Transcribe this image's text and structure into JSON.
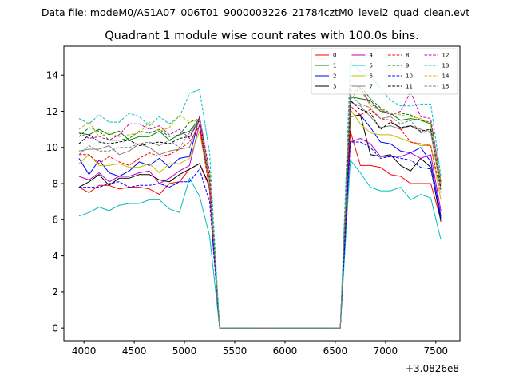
{
  "chart_data": {
    "type": "line",
    "suptitle": "Data file: modeM0/AS1A07_006T01_9000003226_21784cztM0_level2_quad_clean.evt",
    "title": "Quadrant 1 module wise count rates with 100.0s bins.",
    "xlabel": "",
    "ylabel": "",
    "offset_label": "+3.0826e8",
    "xlim": [
      3800,
      7740
    ],
    "ylim": [
      -0.7,
      15.6
    ],
    "xticks": [
      4000,
      4500,
      5000,
      5500,
      6000,
      6500,
      7000,
      7500
    ],
    "yticks": [
      0,
      2,
      4,
      6,
      8,
      10,
      12,
      14
    ],
    "legend_position": "top-right",
    "x": [
      3950,
      4050,
      4150,
      4250,
      4350,
      4450,
      4550,
      4650,
      4750,
      4850,
      4950,
      5050,
      5150,
      5250,
      5350,
      5450,
      5550,
      5650,
      5750,
      5850,
      5950,
      6050,
      6150,
      6250,
      6350,
      6450,
      6550,
      6650,
      6750,
      6850,
      6950,
      7050,
      7150,
      7250,
      7350,
      7450,
      7550
    ],
    "series": [
      {
        "name": "0",
        "color": "#ff0000",
        "dash": "solid",
        "values": [
          7.8,
          7.5,
          7.9,
          7.9,
          7.7,
          7.8,
          7.8,
          7.7,
          7.4,
          8.0,
          8.1,
          8.8,
          9.1,
          7.8,
          0,
          0,
          0,
          0,
          0,
          0,
          0,
          0,
          0,
          0,
          0,
          0,
          0,
          10.9,
          9.0,
          9.0,
          8.9,
          8.5,
          8.4,
          8.0,
          8.0,
          8.0,
          6.0
        ]
      },
      {
        "name": "1",
        "color": "#008000",
        "dash": "solid",
        "values": [
          10.8,
          10.7,
          11.0,
          10.7,
          10.9,
          10.4,
          10.6,
          10.6,
          10.9,
          10.4,
          10.7,
          10.9,
          11.6,
          8.4,
          0,
          0,
          0,
          0,
          0,
          0,
          0,
          0,
          0,
          0,
          0,
          0,
          0,
          12.8,
          12.7,
          12.6,
          12.0,
          11.9,
          11.5,
          11.6,
          11.5,
          11.3,
          8.1
        ]
      },
      {
        "name": "2",
        "color": "#0000ff",
        "dash": "solid",
        "values": [
          9.4,
          8.5,
          9.3,
          8.6,
          8.4,
          8.7,
          9.2,
          9.0,
          9.4,
          8.9,
          9.4,
          9.5,
          11.7,
          7.6,
          0,
          0,
          0,
          0,
          0,
          0,
          0,
          0,
          0,
          0,
          0,
          0,
          0,
          11.7,
          11.8,
          11.1,
          10.3,
          10.2,
          9.8,
          9.7,
          10.0,
          9.2,
          6.2
        ]
      },
      {
        "name": "3",
        "color": "#000000",
        "dash": "solid",
        "values": [
          7.8,
          8.1,
          8.5,
          7.9,
          8.3,
          8.3,
          8.5,
          8.5,
          8.2,
          8.1,
          8.5,
          8.8,
          9.1,
          7.9,
          0,
          0,
          0,
          0,
          0,
          0,
          0,
          0,
          0,
          0,
          0,
          0,
          0,
          11.7,
          11.8,
          9.6,
          9.5,
          9.6,
          9.0,
          8.7,
          9.4,
          8.9,
          5.9
        ]
      },
      {
        "name": "4",
        "color": "#bf00bf",
        "dash": "solid",
        "values": [
          8.4,
          8.2,
          8.6,
          8.1,
          8.4,
          8.4,
          8.6,
          8.7,
          8.0,
          8.3,
          8.7,
          9.0,
          11.3,
          7.7,
          0,
          0,
          0,
          0,
          0,
          0,
          0,
          0,
          0,
          0,
          0,
          0,
          0,
          10.3,
          10.5,
          10.2,
          9.5,
          9.5,
          9.5,
          9.7,
          9.4,
          9.6,
          6.5
        ]
      },
      {
        "name": "5",
        "color": "#00bfbf",
        "dash": "solid",
        "values": [
          6.2,
          6.4,
          6.7,
          6.5,
          6.8,
          6.9,
          6.9,
          7.1,
          7.1,
          6.6,
          6.4,
          8.3,
          7.3,
          5.1,
          0,
          0,
          0,
          0,
          0,
          0,
          0,
          0,
          0,
          0,
          0,
          0,
          0,
          9.3,
          8.6,
          7.8,
          7.6,
          7.6,
          7.8,
          7.1,
          7.4,
          7.2,
          4.9
        ]
      },
      {
        "name": "6",
        "color": "#bfbf00",
        "dash": "solid",
        "values": [
          9.1,
          9.6,
          9.0,
          9.0,
          9.1,
          8.9,
          8.9,
          9.1,
          8.6,
          9.1,
          9.1,
          9.4,
          10.9,
          7.8,
          0,
          0,
          0,
          0,
          0,
          0,
          0,
          0,
          0,
          0,
          0,
          0,
          0,
          12.1,
          11.3,
          10.8,
          10.7,
          10.7,
          10.5,
          10.3,
          10.1,
          10.1,
          7.1
        ]
      },
      {
        "name": "7",
        "color": "#808080",
        "dash": "solid",
        "values": [
          9.8,
          9.9,
          9.9,
          10.1,
          9.6,
          9.8,
          10.2,
          10.0,
          9.6,
          9.8,
          9.9,
          10.0,
          11.6,
          8.3,
          0,
          0,
          0,
          0,
          0,
          0,
          0,
          0,
          0,
          0,
          0,
          0,
          0,
          12.5,
          12.3,
          11.7,
          11.1,
          11.2,
          11.0,
          11.2,
          11.0,
          10.8,
          7.7
        ]
      },
      {
        "name": "8",
        "color": "#ff0000",
        "dash": "dashed",
        "values": [
          9.6,
          9.6,
          9.1,
          9.5,
          9.2,
          9.0,
          9.4,
          9.7,
          9.5,
          9.6,
          9.9,
          10.3,
          11.2,
          7.6,
          0,
          0,
          0,
          0,
          0,
          0,
          0,
          0,
          0,
          0,
          0,
          0,
          0,
          12.3,
          11.8,
          12.1,
          11.6,
          11.5,
          11.0,
          10.3,
          10.2,
          10.1,
          7.5
        ]
      },
      {
        "name": "9",
        "color": "#008000",
        "dash": "dashed",
        "values": [
          10.6,
          11.1,
          10.9,
          10.4,
          10.4,
          10.5,
          10.9,
          10.8,
          11.0,
          10.6,
          10.7,
          11.4,
          11.6,
          8.3,
          0,
          0,
          0,
          0,
          0,
          0,
          0,
          0,
          0,
          0,
          0,
          0,
          0,
          12.6,
          13.4,
          12.7,
          12.2,
          11.9,
          11.9,
          11.8,
          11.5,
          11.4,
          8.0
        ]
      },
      {
        "name": "10",
        "color": "#0000ff",
        "dash": "dashed",
        "values": [
          7.8,
          7.8,
          7.8,
          8.0,
          8.1,
          7.8,
          7.9,
          7.9,
          8.0,
          7.8,
          8.1,
          8.1,
          8.8,
          7.0,
          0,
          0,
          0,
          0,
          0,
          0,
          0,
          0,
          0,
          0,
          0,
          0,
          0,
          10.3,
          10.3,
          10.0,
          9.4,
          9.5,
          9.4,
          9.3,
          8.9,
          8.8,
          6.1
        ]
      },
      {
        "name": "11",
        "color": "#000000",
        "dash": "dashed",
        "values": [
          10.2,
          10.7,
          10.3,
          10.2,
          10.3,
          10.4,
          10.1,
          10.2,
          10.3,
          10.2,
          10.5,
          10.6,
          11.5,
          8.2,
          0,
          0,
          0,
          0,
          0,
          0,
          0,
          0,
          0,
          0,
          0,
          0,
          0,
          12.6,
          12.1,
          11.9,
          11.0,
          11.4,
          11.1,
          11.2,
          10.9,
          11.0,
          7.8
        ]
      },
      {
        "name": "12",
        "color": "#bf00bf",
        "dash": "dashed",
        "values": [
          10.8,
          10.5,
          10.6,
          10.4,
          10.7,
          11.3,
          11.3,
          11.0,
          11.2,
          10.7,
          11.0,
          10.5,
          11.7,
          8.7,
          0,
          0,
          0,
          0,
          0,
          0,
          0,
          0,
          0,
          0,
          0,
          0,
          0,
          13.5,
          13.3,
          12.4,
          12.1,
          11.8,
          12.0,
          13.1,
          11.7,
          11.6,
          8.1
        ]
      },
      {
        "name": "13",
        "color": "#00bfbf",
        "dash": "dashed",
        "values": [
          11.6,
          11.3,
          11.8,
          11.4,
          11.4,
          11.9,
          11.7,
          11.2,
          11.7,
          11.3,
          11.7,
          13.0,
          13.2,
          9.7,
          0,
          0,
          0,
          0,
          0,
          0,
          0,
          0,
          0,
          0,
          0,
          0,
          0,
          14.8,
          14.2,
          13.9,
          13.3,
          12.6,
          12.3,
          12.3,
          12.4,
          12.4,
          8.4
        ]
      },
      {
        "name": "14",
        "color": "#bfbf00",
        "dash": "dashed",
        "values": [
          11.0,
          11.4,
          10.6,
          10.8,
          10.6,
          10.7,
          10.8,
          11.4,
          10.9,
          11.1,
          11.8,
          11.4,
          11.5,
          8.4,
          0,
          0,
          0,
          0,
          0,
          0,
          0,
          0,
          0,
          0,
          0,
          0,
          0,
          13.1,
          13.2,
          12.3,
          12.1,
          11.9,
          11.8,
          11.7,
          11.6,
          11.3,
          8.0
        ]
      },
      {
        "name": "15",
        "color": "#808080",
        "dash": "dashed",
        "values": [
          9.6,
          10.1,
          9.8,
          9.8,
          10.0,
          10.0,
          10.2,
          10.3,
          10.1,
          10.4,
          10.0,
          10.8,
          11.5,
          8.1,
          0,
          0,
          0,
          0,
          0,
          0,
          0,
          0,
          0,
          0,
          0,
          0,
          0,
          12.9,
          12.4,
          12.2,
          11.6,
          11.7,
          11.3,
          11.5,
          10.8,
          10.9,
          7.6
        ]
      }
    ]
  }
}
